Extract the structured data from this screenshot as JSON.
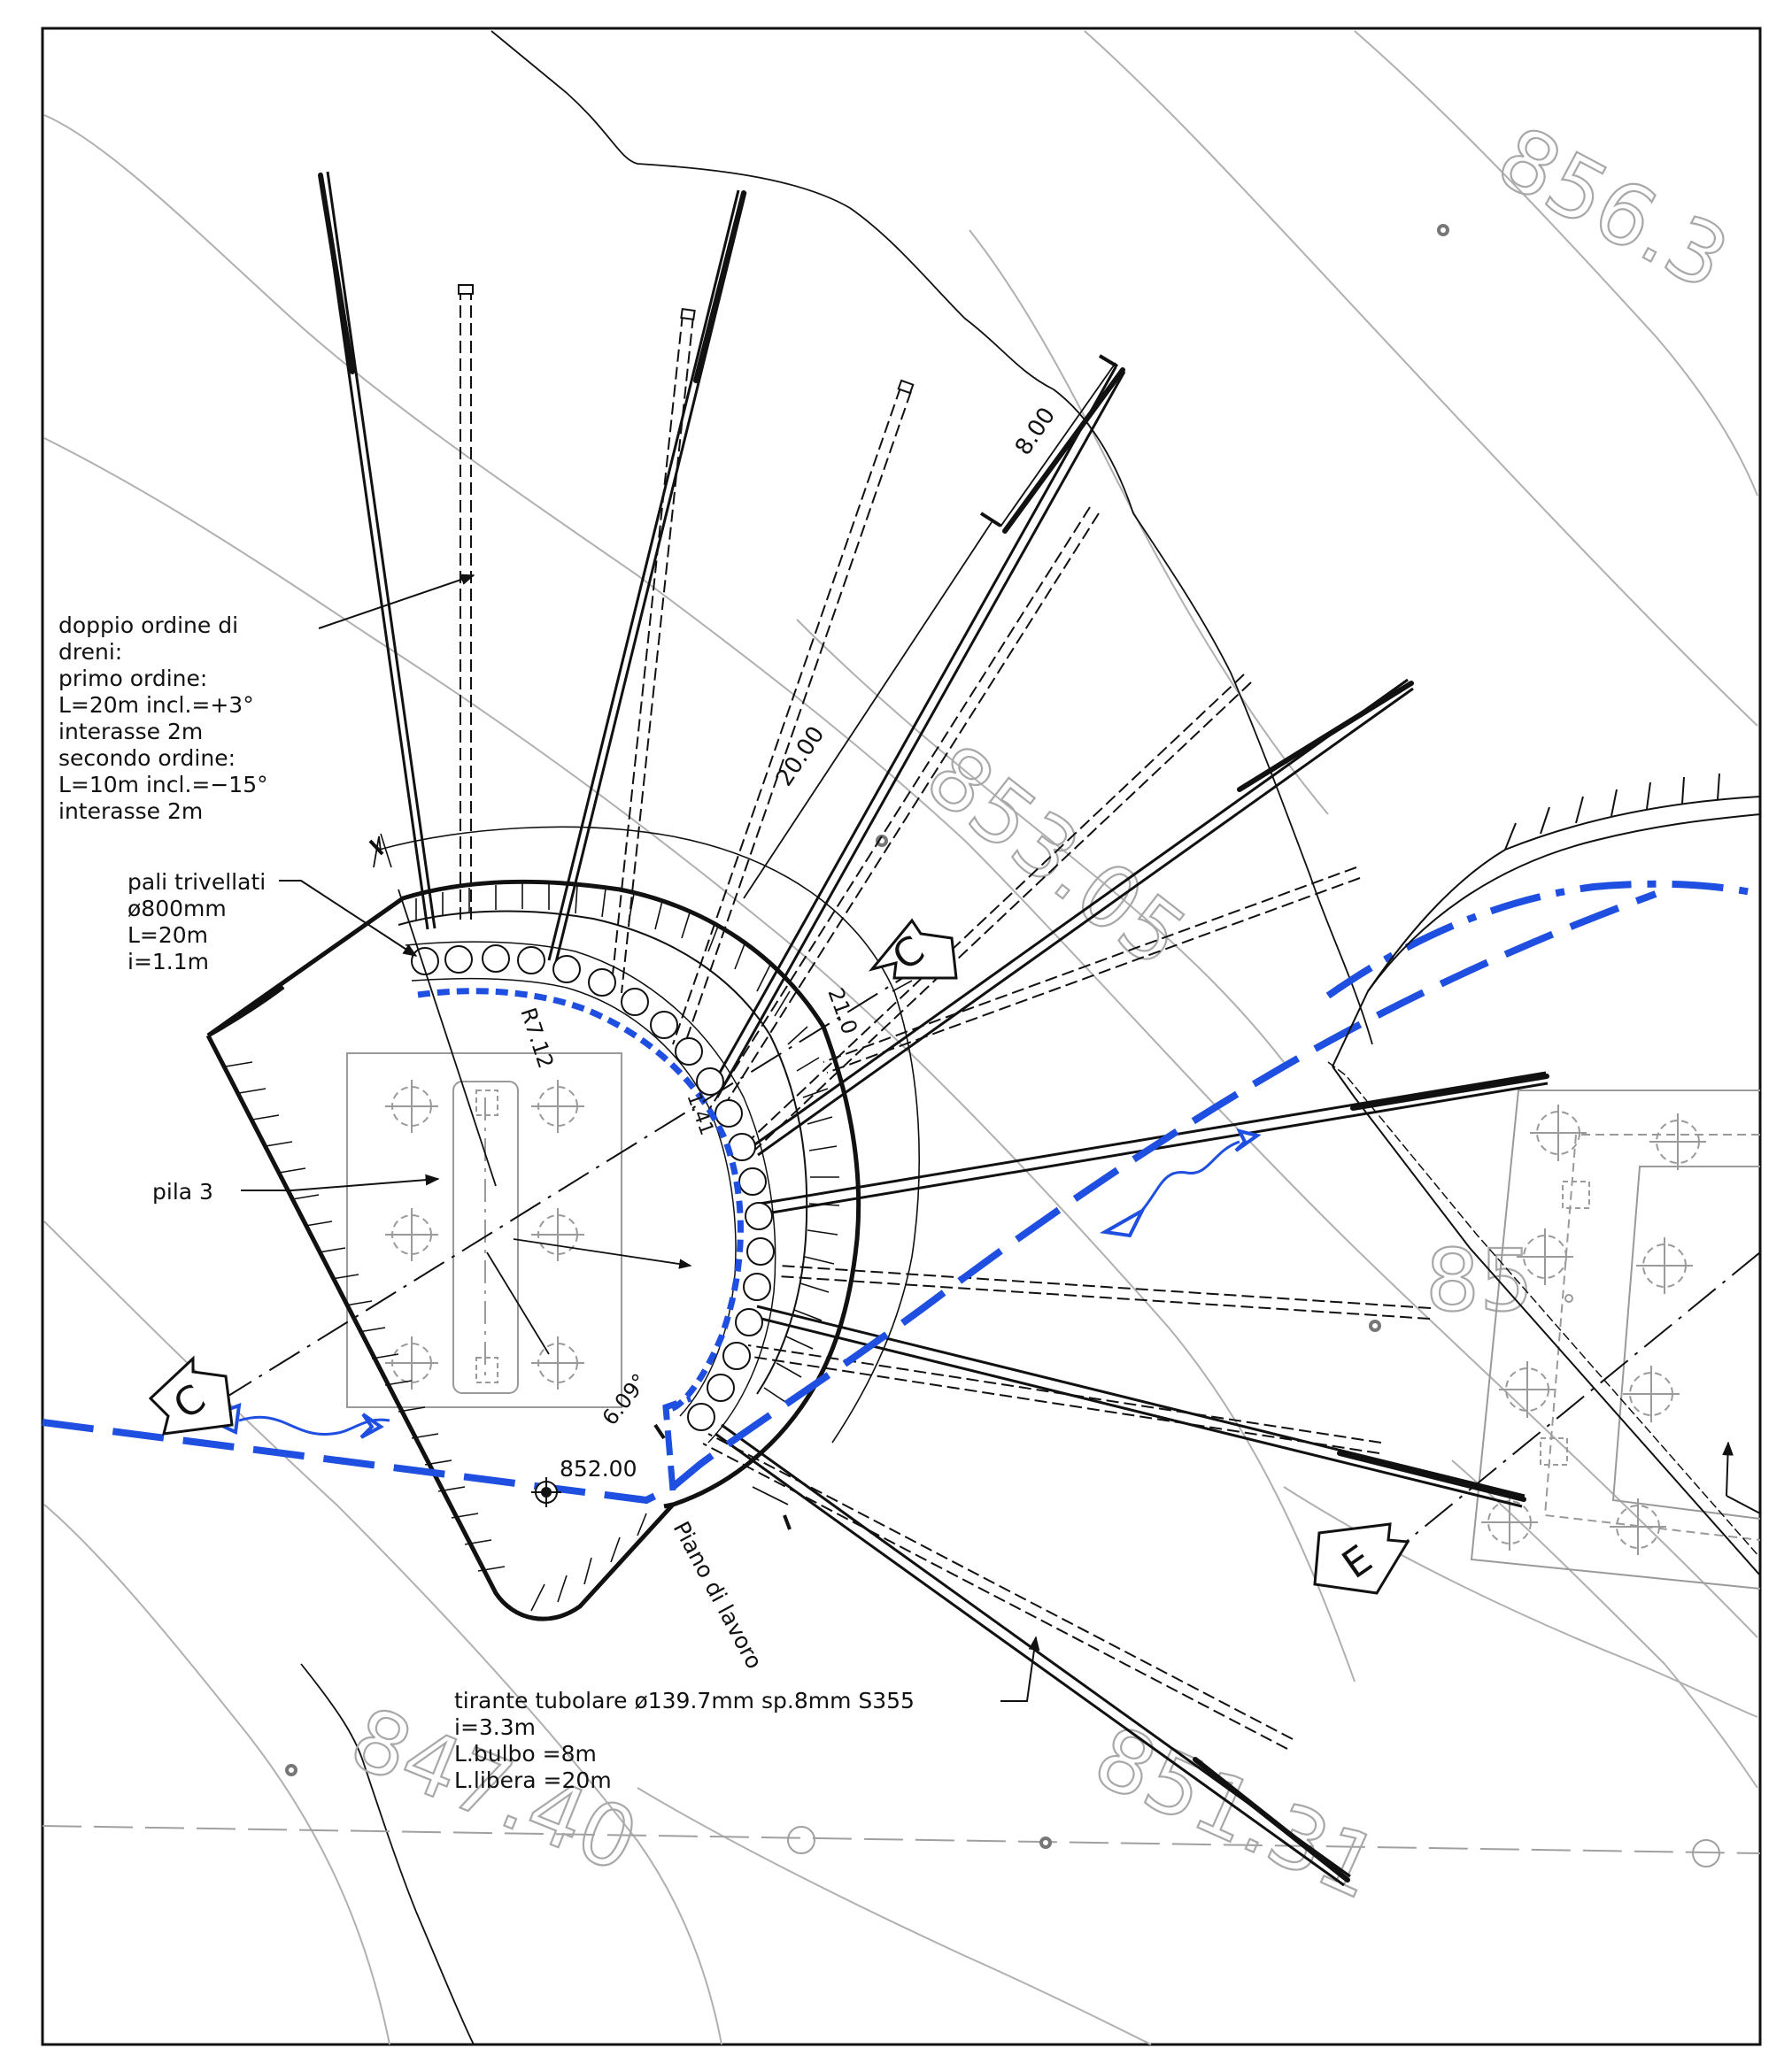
{
  "drawing": {
    "title": "",
    "annotations": {
      "drains_lines": [
        "doppio ordine di",
        "dreni:",
        "primo ordine:",
        "L=20m   incl.=+3°",
        "interasse 2m",
        "secondo ordine:",
        "L=10m   incl.=−15°",
        "interasse 2m"
      ],
      "piles_lines": [
        "pali trivellati",
        "ø800mm",
        "L=20m",
        "i=1.1m"
      ],
      "pier": "pila 3",
      "tieback_lines": [
        "tirante tubolare ø139.7mm sp.8mm S355",
        "i=3.3m",
        "L.bulbo  =8m",
        "L.libera  =20m"
      ],
      "work_plane": "Piano di lavoro",
      "elevation": "852.00"
    },
    "dimensions": {
      "anchor_length": "20.00",
      "bulb_length": "8.00",
      "radius": "R7.12",
      "angle_small": "6.09°",
      "angle_large": "21.0",
      "small_dim": "1.41"
    },
    "section_marks": {
      "c_left": "C",
      "c_right": "C",
      "e": "E"
    },
    "contour_elevations": [
      "856.3",
      "853.05",
      "847.40",
      "851.31",
      "85"
    ],
    "colors": {
      "line": "#111111",
      "terrain": "#b0b0b0",
      "water": "#1f4fe0"
    }
  }
}
